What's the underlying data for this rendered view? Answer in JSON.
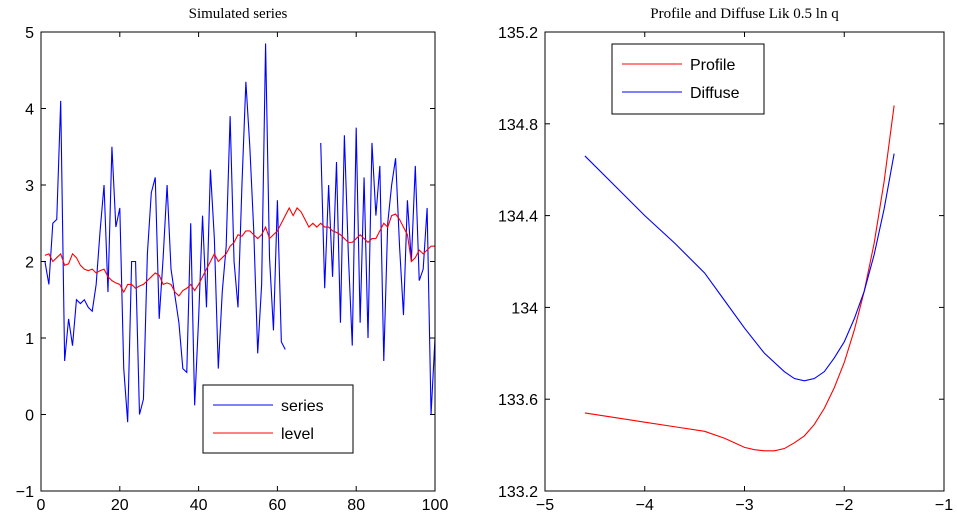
{
  "chart_data": [
    {
      "type": "line",
      "title": "Simulated series",
      "xlabel": "",
      "ylabel": "",
      "xlim": [
        0,
        100
      ],
      "ylim": [
        -1,
        5
      ],
      "xticks": [
        0,
        20,
        40,
        60,
        80,
        100
      ],
      "yticks": [
        -1,
        0,
        1,
        2,
        3,
        4,
        5
      ],
      "xtick_labels": [
        "0",
        "20",
        "40",
        "60",
        "80",
        "100"
      ],
      "ytick_labels": [
        "−1",
        "0",
        "1",
        "2",
        "3",
        "4",
        "5"
      ],
      "legend_position": "bottom-right",
      "series": [
        {
          "name": "series",
          "color": "#0000ff",
          "x": [
            1,
            2,
            3,
            4,
            5,
            6,
            7,
            8,
            9,
            10,
            11,
            12,
            13,
            14,
            15,
            16,
            17,
            18,
            19,
            20,
            21,
            22,
            23,
            24,
            25,
            26,
            27,
            28,
            29,
            30,
            31,
            32,
            33,
            34,
            35,
            36,
            37,
            38,
            39,
            40,
            41,
            42,
            43,
            44,
            45,
            46,
            47,
            48,
            49,
            50,
            51,
            52,
            53,
            54,
            55,
            56,
            57,
            58,
            59,
            60,
            61,
            62,
            63,
            64,
            65,
            66,
            67,
            68,
            69,
            70,
            71,
            72,
            73,
            74,
            75,
            76,
            77,
            78,
            79,
            80,
            81,
            82,
            83,
            84,
            85,
            86,
            87,
            88,
            89,
            90,
            91,
            92,
            93,
            94,
            95,
            96,
            97,
            98,
            99,
            100
          ],
          "y": [
            2.0,
            1.7,
            2.5,
            2.55,
            4.1,
            0.7,
            1.25,
            0.9,
            1.5,
            1.45,
            1.5,
            1.4,
            1.35,
            1.7,
            2.4,
            3.0,
            1.6,
            3.5,
            2.45,
            2.7,
            0.6,
            -0.1,
            2.0,
            2.0,
            0.0,
            0.2,
            2.1,
            2.9,
            3.1,
            1.25,
            2.05,
            3.0,
            1.9,
            1.55,
            1.2,
            0.6,
            0.55,
            2.5,
            0.12,
            1.25,
            2.6,
            1.4,
            3.2,
            2.3,
            0.6,
            1.6,
            2.2,
            3.9,
            2.0,
            1.4,
            3.0,
            4.35,
            3.5,
            2.4,
            0.8,
            1.7,
            4.85,
            2.05,
            1.1,
            2.8,
            0.95,
            0.85,
            null,
            null,
            null,
            null,
            null,
            null,
            null,
            null,
            3.55,
            1.65,
            3.0,
            1.8,
            3.3,
            1.2,
            3.65,
            2.1,
            0.9,
            3.75,
            1.2,
            3.1,
            1.0,
            3.55,
            2.6,
            3.25,
            0.7,
            2.5,
            3.0,
            3.35,
            2.2,
            1.3,
            2.8,
            2.0,
            3.25,
            1.75,
            1.9,
            2.7,
            0.0,
            1.0
          ]
        },
        {
          "name": "level",
          "color": "#ff0000",
          "x": [
            1,
            2,
            3,
            4,
            5,
            6,
            7,
            8,
            9,
            10,
            11,
            12,
            13,
            14,
            15,
            16,
            17,
            18,
            19,
            20,
            21,
            22,
            23,
            24,
            25,
            26,
            27,
            28,
            29,
            30,
            31,
            32,
            33,
            34,
            35,
            36,
            37,
            38,
            39,
            40,
            41,
            42,
            43,
            44,
            45,
            46,
            47,
            48,
            49,
            50,
            51,
            52,
            53,
            54,
            55,
            56,
            57,
            58,
            59,
            60,
            61,
            62,
            63,
            64,
            65,
            66,
            67,
            68,
            69,
            70,
            71,
            72,
            73,
            74,
            75,
            76,
            77,
            78,
            79,
            80,
            81,
            82,
            83,
            84,
            85,
            86,
            87,
            88,
            89,
            90,
            91,
            92,
            93,
            94,
            95,
            96,
            97,
            98,
            99,
            100
          ],
          "y": [
            2.08,
            2.1,
            2.0,
            2.05,
            2.1,
            1.95,
            1.97,
            2.1,
            2.05,
            1.95,
            1.9,
            1.88,
            1.9,
            1.85,
            1.88,
            1.9,
            1.8,
            1.75,
            1.72,
            1.7,
            1.6,
            1.7,
            1.7,
            1.65,
            1.68,
            1.7,
            1.75,
            1.8,
            1.85,
            1.82,
            1.7,
            1.72,
            1.7,
            1.6,
            1.55,
            1.62,
            1.65,
            1.7,
            1.62,
            1.7,
            1.8,
            1.9,
            2.0,
            2.1,
            2.0,
            2.05,
            2.1,
            2.2,
            2.25,
            2.35,
            2.33,
            2.4,
            2.4,
            2.35,
            2.3,
            2.35,
            2.45,
            2.3,
            2.35,
            2.4,
            2.5,
            2.6,
            2.7,
            2.6,
            2.7,
            2.65,
            2.55,
            2.45,
            2.5,
            2.45,
            2.5,
            2.45,
            2.45,
            2.4,
            2.38,
            2.35,
            2.3,
            2.25,
            2.25,
            2.3,
            2.35,
            2.3,
            2.25,
            2.3,
            2.3,
            2.4,
            2.5,
            2.45,
            2.6,
            2.62,
            2.55,
            2.45,
            2.35,
            2.0,
            2.05,
            2.15,
            2.1,
            2.15,
            2.2,
            2.2
          ]
        }
      ]
    },
    {
      "type": "line",
      "title": "Profile and Diffuse Lik 0.5 ln q",
      "xlabel": "",
      "ylabel": "",
      "xlim": [
        -5,
        -1
      ],
      "ylim": [
        133.2,
        135.2
      ],
      "xticks": [
        -5,
        -4,
        -3,
        -2,
        -1
      ],
      "yticks": [
        133.2,
        133.6,
        134,
        134.4,
        134.8,
        135.2
      ],
      "xtick_labels": [
        "−5",
        "−4",
        "−3",
        "−2",
        "−1"
      ],
      "ytick_labels": [
        "133.2",
        "133.6",
        "134",
        "134.4",
        "134.8",
        "135.2"
      ],
      "legend_position": "top-left",
      "series": [
        {
          "name": "Profile",
          "color": "#ff0000",
          "x": [
            -4.6,
            -4.3,
            -4.0,
            -3.7,
            -3.4,
            -3.2,
            -3.0,
            -2.9,
            -2.8,
            -2.7,
            -2.6,
            -2.5,
            -2.4,
            -2.3,
            -2.2,
            -2.1,
            -2.0,
            -1.9,
            -1.8,
            -1.7,
            -1.6,
            -1.5
          ],
          "y": [
            133.54,
            133.52,
            133.5,
            133.48,
            133.46,
            133.43,
            133.39,
            133.38,
            133.375,
            133.375,
            133.385,
            133.41,
            133.44,
            133.49,
            133.56,
            133.65,
            133.76,
            133.9,
            134.07,
            134.28,
            134.55,
            134.88
          ]
        },
        {
          "name": "Diffuse",
          "color": "#0000ff",
          "x": [
            -4.6,
            -4.3,
            -4.0,
            -3.7,
            -3.4,
            -3.2,
            -3.0,
            -2.8,
            -2.6,
            -2.5,
            -2.4,
            -2.3,
            -2.2,
            -2.1,
            -2.0,
            -1.9,
            -1.8,
            -1.7,
            -1.6,
            -1.5
          ],
          "y": [
            134.66,
            134.53,
            134.4,
            134.28,
            134.15,
            134.03,
            133.91,
            133.8,
            133.72,
            133.69,
            133.68,
            133.69,
            133.72,
            133.78,
            133.85,
            133.95,
            134.07,
            134.23,
            134.43,
            134.67
          ]
        }
      ]
    }
  ]
}
